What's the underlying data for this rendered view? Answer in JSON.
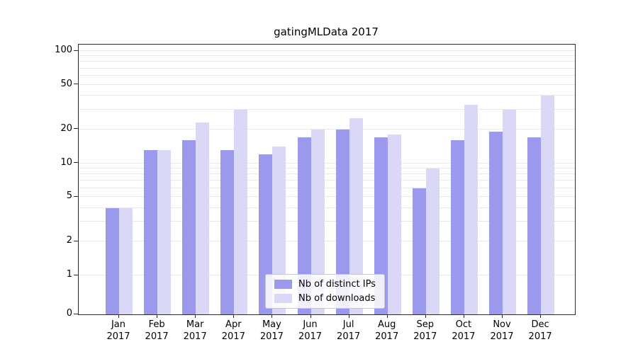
{
  "chart_data": {
    "type": "bar",
    "title": "gatingMLData 2017",
    "categories": [
      "Jan",
      "Feb",
      "Mar",
      "Apr",
      "May",
      "Jun",
      "Jul",
      "Aug",
      "Sep",
      "Oct",
      "Nov",
      "Dec"
    ],
    "year_label": "2017",
    "series": [
      {
        "name": "Nb of distinct IPs",
        "color": "#9a99ee",
        "values": [
          4,
          13,
          16,
          13,
          12,
          17,
          20,
          17,
          6,
          16,
          19,
          17
        ]
      },
      {
        "name": "Nb of downloads",
        "color": "#dad8f7",
        "values": [
          4,
          13,
          23,
          30,
          14,
          20,
          25,
          18,
          9,
          33,
          30,
          40
        ]
      }
    ],
    "xlabel": "",
    "ylabel": "",
    "yscale": "symlog",
    "yticks": [
      0,
      1,
      2,
      5,
      10,
      20,
      50,
      100
    ],
    "gridlines": [
      1,
      2,
      3,
      4,
      5,
      6,
      7,
      8,
      9,
      10,
      20,
      30,
      40,
      50,
      60,
      70,
      80,
      90,
      100
    ],
    "ylim": [
      0,
      114
    ],
    "grid": "horizontal",
    "legend_position": "lower center"
  }
}
